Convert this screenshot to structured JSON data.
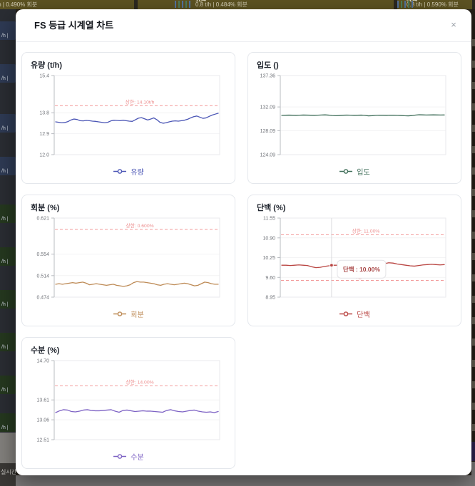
{
  "backdrop": {
    "top_cards": [
      {
        "id": "",
        "text": "/h | 0.490% 회분"
      },
      {
        "id": "1B4",
        "text": "0.8 t/h | 0.484% 회분"
      },
      {
        "id": "3B4",
        "text": "0.8 t/h | 0.590% 회분"
      }
    ],
    "left_edge_label": "/h |",
    "bottom_left_text": "실시간",
    "colors": {
      "card_olive": "#5d5322",
      "edge_navy": "#2e3a54",
      "edge_green": "#25381f",
      "bar_blue": "#54739f",
      "bar_green": "#4f7d5b"
    }
  },
  "modal": {
    "title": "FS 등급 시계열 차트",
    "close_icon": "×"
  },
  "chart_data": [
    {
      "type": "line",
      "title": "유량 (t/h)",
      "legend_label": "유량",
      "color": "#4a55b5",
      "ylim": [
        12.0,
        15.4
      ],
      "y_ticks": [
        {
          "value": 15.4,
          "label": "15.4"
        },
        {
          "value": 13.8,
          "label": "13.8"
        },
        {
          "value": 12.9,
          "label": "12.9"
        },
        {
          "value": 12.0,
          "label": "12.0"
        }
      ],
      "thresholds": [
        {
          "value": 14.1,
          "label": "상한: 14.10t/h"
        }
      ],
      "values": [
        13.41,
        13.39,
        13.37,
        13.38,
        13.42,
        13.49,
        13.53,
        13.51,
        13.46,
        13.45,
        13.47,
        13.46,
        13.44,
        13.43,
        13.41,
        13.39,
        13.37,
        13.39,
        13.45,
        13.48,
        13.47,
        13.46,
        13.48,
        13.46,
        13.44,
        13.43,
        13.5,
        13.57,
        13.59,
        13.54,
        13.49,
        13.53,
        13.58,
        13.5,
        13.39,
        13.35,
        13.37,
        13.41,
        13.44,
        13.45,
        13.44,
        13.46,
        13.48,
        13.52,
        13.58,
        13.63,
        13.66,
        13.61,
        13.56,
        13.58,
        13.64,
        13.7,
        13.74,
        13.78
      ]
    },
    {
      "type": "line",
      "title": "입도 ()",
      "legend_label": "입도",
      "color": "#3f6e59",
      "ylim": [
        124.09,
        137.36
      ],
      "y_ticks": [
        {
          "value": 137.36,
          "label": "137.36"
        },
        {
          "value": 132.09,
          "label": "132.09"
        },
        {
          "value": 128.09,
          "label": "128.09"
        },
        {
          "value": 124.09,
          "label": "124.09"
        }
      ],
      "thresholds": [],
      "values": [
        130.68,
        130.7,
        130.72,
        130.7,
        130.69,
        130.71,
        130.73,
        130.72,
        130.7,
        130.69,
        130.71,
        130.74,
        130.76,
        130.72,
        130.65,
        130.62,
        130.66,
        130.7,
        130.72,
        130.71,
        130.69,
        130.7,
        130.72,
        130.68,
        130.6,
        130.63,
        130.68,
        130.71,
        130.7,
        130.69,
        130.71,
        130.7,
        130.68,
        130.66,
        130.62,
        130.6,
        130.64,
        130.72,
        130.78,
        130.76,
        130.74,
        130.75,
        130.76,
        130.75,
        130.74,
        130.75
      ]
    },
    {
      "type": "line",
      "title": "회분 (%)",
      "legend_label": "회분",
      "color": "#bd8a55",
      "ylim": [
        0.474,
        0.621
      ],
      "y_ticks": [
        {
          "value": 0.621,
          "label": "0.621"
        },
        {
          "value": 0.554,
          "label": "0.554"
        },
        {
          "value": 0.514,
          "label": "0.514"
        },
        {
          "value": 0.474,
          "label": "0.474"
        }
      ],
      "thresholds": [
        {
          "value": 0.6,
          "label": "상한: 0.600%"
        }
      ],
      "values": [
        0.498,
        0.499,
        0.498,
        0.499,
        0.5,
        0.501,
        0.5,
        0.501,
        0.502,
        0.5,
        0.497,
        0.498,
        0.499,
        0.498,
        0.497,
        0.496,
        0.497,
        0.498,
        0.496,
        0.495,
        0.494,
        0.495,
        0.497,
        0.501,
        0.503,
        0.502,
        0.502,
        0.501,
        0.5,
        0.499,
        0.497,
        0.496,
        0.498,
        0.499,
        0.498,
        0.497,
        0.498,
        0.499,
        0.5,
        0.499,
        0.497,
        0.495,
        0.496,
        0.499,
        0.502,
        0.501,
        0.499,
        0.498,
        0.498
      ]
    },
    {
      "type": "line",
      "title": "단백 (%)",
      "legend_label": "단백",
      "color": "#b94542",
      "ylim": [
        8.95,
        11.55
      ],
      "y_ticks": [
        {
          "value": 11.55,
          "label": "11.55"
        },
        {
          "value": 10.9,
          "label": "10.90"
        },
        {
          "value": 10.25,
          "label": "10.25"
        },
        {
          "value": 9.6,
          "label": "9.60"
        },
        {
          "value": 8.95,
          "label": "8.95"
        }
      ],
      "thresholds": [
        {
          "value": 11.0,
          "label": "상한: 11.00%"
        },
        {
          "value": 9.5,
          "label": "하한: 9.50%"
        }
      ],
      "tooltip": {
        "x_frac": 0.31,
        "value": 10.0,
        "label": "단백 : 10.00%"
      },
      "values": [
        10.0,
        10.0,
        9.99,
        10.0,
        10.01,
        10.0,
        9.99,
        9.95,
        9.92,
        9.93,
        9.96,
        9.98,
        10.0,
        10.0,
        10.0,
        10.01,
        10.0,
        10.0,
        10.0,
        10.0,
        10.01,
        10.02,
        10.03,
        10.02,
        10.05,
        10.08,
        10.07,
        10.04,
        10.02,
        10.0,
        9.98,
        9.97,
        9.99,
        10.01,
        10.02,
        10.03,
        10.02,
        10.01,
        10.02
      ]
    },
    {
      "type": "line",
      "title": "수분 (%)",
      "legend_label": "수분",
      "color": "#7d62c4",
      "ylim": [
        12.51,
        14.7
      ],
      "y_ticks": [
        {
          "value": 14.7,
          "label": "14.70"
        },
        {
          "value": 13.61,
          "label": "13.61"
        },
        {
          "value": 13.06,
          "label": "13.06"
        },
        {
          "value": 12.51,
          "label": "12.51"
        }
      ],
      "thresholds": [
        {
          "value": 14.0,
          "label": "상한: 14.00%"
        }
      ],
      "values": [
        13.26,
        13.31,
        13.34,
        13.33,
        13.29,
        13.28,
        13.3,
        13.33,
        13.34,
        13.32,
        13.31,
        13.31,
        13.32,
        13.33,
        13.34,
        13.3,
        13.27,
        13.32,
        13.33,
        13.31,
        13.29,
        13.3,
        13.31,
        13.3,
        13.3,
        13.29,
        13.28,
        13.27,
        13.32,
        13.34,
        13.31,
        13.29,
        13.28,
        13.3,
        13.32,
        13.33,
        13.3,
        13.28,
        13.27,
        13.28,
        13.26,
        13.29
      ]
    }
  ]
}
